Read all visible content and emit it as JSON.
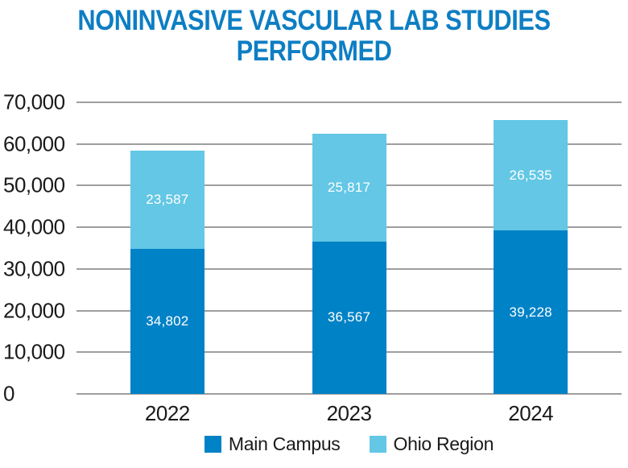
{
  "title": "NONINVASIVE VASCULAR LAB STUDIES PERFORMED",
  "colors": {
    "title_text": "#0d7ec3",
    "main_campus": "#0082c6",
    "ohio_region": "#63c7e5",
    "gridline": "#9e9e9e",
    "axis_text": "#1a1a1a",
    "bar_label_text": "#ffffff"
  },
  "chart_data": {
    "type": "bar",
    "stacked": true,
    "title": "NONINVASIVE VASCULAR LAB STUDIES PERFORMED",
    "categories": [
      "2022",
      "2023",
      "2024"
    ],
    "series": [
      {
        "name": "Main Campus",
        "color_key": "main_campus",
        "values": [
          34802,
          36567,
          39228
        ]
      },
      {
        "name": "Ohio Region",
        "color_key": "ohio_region",
        "values": [
          23587,
          25817,
          26535
        ]
      }
    ],
    "totals": [
      58389,
      62384,
      65763
    ],
    "xlabel": "",
    "ylabel": "",
    "ylim": [
      0,
      70000
    ],
    "yticks": [
      0,
      10000,
      20000,
      30000,
      40000,
      50000,
      60000,
      70000
    ],
    "grid": true,
    "legend_position": "bottom"
  }
}
